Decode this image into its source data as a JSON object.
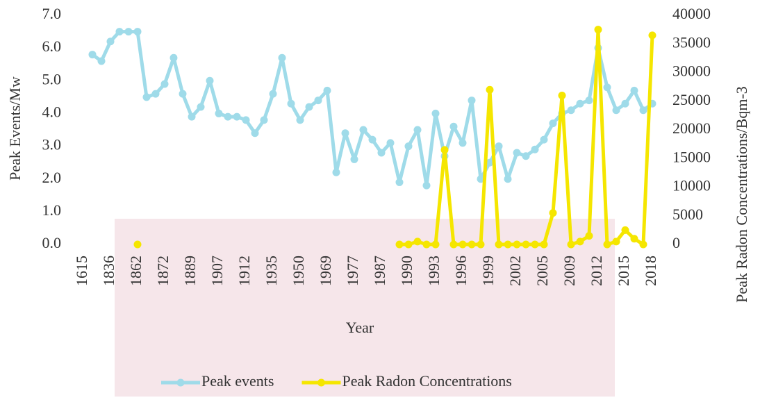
{
  "chart_data": {
    "type": "line",
    "x_label": "Year",
    "y_label": "Peak Events/Mw",
    "y2_label": "Peak Radon Concentrations/Bqm-3",
    "categories": [
      "1615",
      null,
      null,
      "1836",
      null,
      null,
      "1862",
      null,
      null,
      "1872",
      null,
      null,
      "1889",
      null,
      null,
      "1907",
      null,
      null,
      "1912",
      null,
      null,
      "1935",
      null,
      null,
      "1950",
      null,
      null,
      "1969",
      null,
      null,
      "1977",
      null,
      null,
      "1987",
      null,
      null,
      "1990",
      null,
      null,
      "1993",
      null,
      null,
      "1996",
      null,
      null,
      "1999",
      null,
      null,
      "2002",
      null,
      null,
      "2005",
      null,
      null,
      "2009",
      null,
      null,
      "2012",
      null,
      null,
      "2015",
      null,
      null,
      "2018"
    ],
    "series": [
      {
        "name": "Peak events",
        "color": "#9fdbe9",
        "values": [
          null,
          5.8,
          5.6,
          6.2,
          6.5,
          6.5,
          6.5,
          4.5,
          4.6,
          4.9,
          5.7,
          4.6,
          3.9,
          4.2,
          5.0,
          4.0,
          3.9,
          3.9,
          3.8,
          3.4,
          3.8,
          4.6,
          5.7,
          4.3,
          3.8,
          4.2,
          4.4,
          4.7,
          2.2,
          3.4,
          2.6,
          3.5,
          3.2,
          2.8,
          3.1,
          1.9,
          3.0,
          3.5,
          1.8,
          4.0,
          2.7,
          3.6,
          3.1,
          4.4,
          2.0,
          2.5,
          3.0,
          2.0,
          2.8,
          2.7,
          2.9,
          3.2,
          3.7,
          4.0,
          4.1,
          4.3,
          4.4,
          6.0,
          4.8,
          4.1,
          4.3,
          4.7,
          4.1,
          4.3
        ]
      },
      {
        "name": "Peak Radon Concentrations",
        "color": "#f5e600",
        "axis": "y2",
        "values": [
          null,
          null,
          null,
          null,
          null,
          null,
          0,
          null,
          null,
          null,
          null,
          null,
          null,
          null,
          null,
          null,
          null,
          null,
          null,
          null,
          null,
          null,
          null,
          null,
          null,
          null,
          null,
          null,
          null,
          null,
          null,
          null,
          null,
          null,
          null,
          0,
          0,
          500,
          0,
          0,
          16500,
          0,
          0,
          0,
          0,
          27000,
          0,
          0,
          0,
          0,
          0,
          0,
          5500,
          26000,
          0,
          500,
          1500,
          37500,
          0,
          500,
          2500,
          1000,
          0,
          36500
        ]
      }
    ],
    "ylim": [
      0,
      7
    ],
    "yticks": [
      {
        "value": 0,
        "label": "0.0"
      },
      {
        "value": 1,
        "label": "1.0"
      },
      {
        "value": 2,
        "label": "2.0"
      },
      {
        "value": 3,
        "label": "3.0"
      },
      {
        "value": 4,
        "label": "4.0"
      },
      {
        "value": 5,
        "label": "5.0"
      },
      {
        "value": 6,
        "label": "6.0"
      },
      {
        "value": 7,
        "label": "7.0"
      }
    ],
    "y2lim": [
      0,
      40000
    ],
    "y2ticks": [
      0,
      5000,
      10000,
      15000,
      20000,
      25000,
      30000,
      35000,
      40000
    ],
    "legend": "bottom"
  }
}
